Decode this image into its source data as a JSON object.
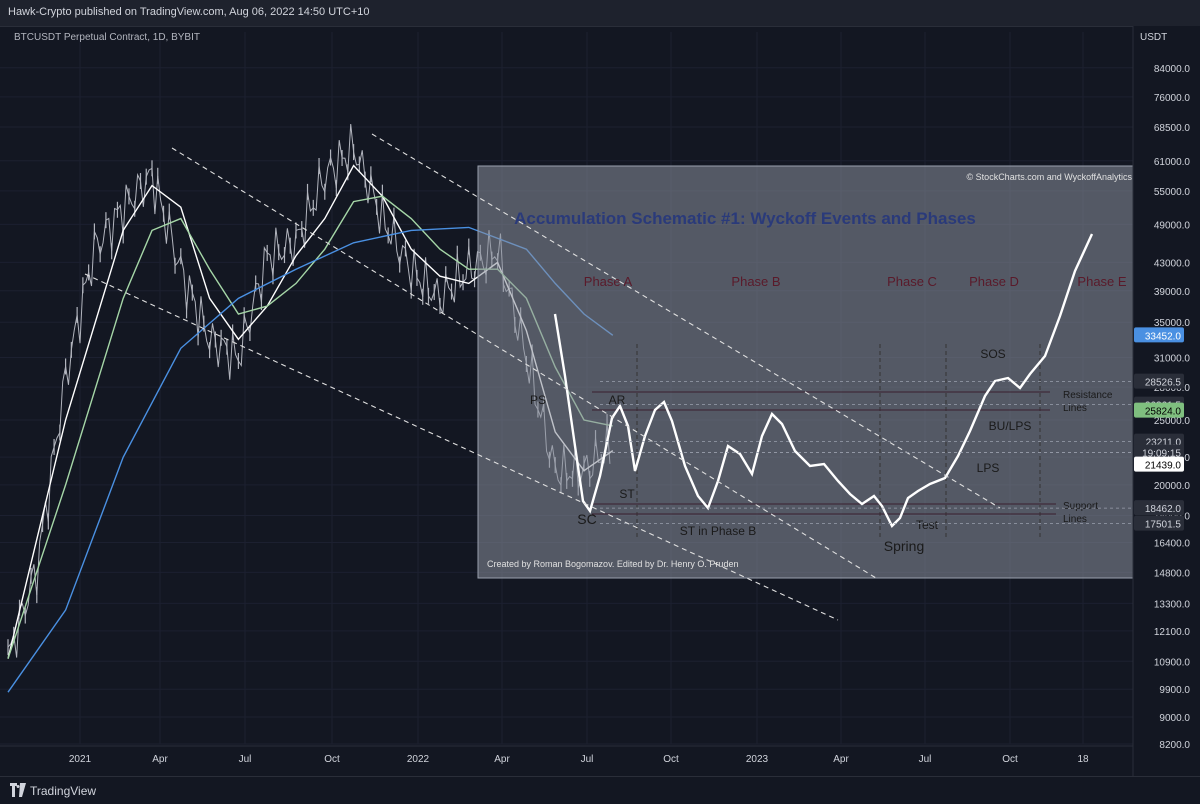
{
  "header": {
    "publisher": "Hawk-Crypto published on TradingView.com, Aug 06, 2022 14:50 UTC+10",
    "symbol": "BTCUSDT Perpetual Contract, 1D, BYBIT"
  },
  "footer": {
    "brand": "TradingView"
  },
  "colors": {
    "background": "#131722",
    "candles": "#b2b5be",
    "ma_white": "#ffffff",
    "ma_green": "#a5d6a7",
    "ma_blue": "#4a90e2",
    "overlay": "#8a8f9c",
    "overlay_title": "#2a3a7a",
    "phase_label": "#5a1a2a",
    "tag_blue": "#4a90e2",
    "tag_green": "#7fbf7f",
    "tag_white": "#ffffff"
  },
  "chart_data": {
    "type": "line",
    "title": "",
    "axis_unit": "USDT",
    "scale": "log",
    "ylim": [
      8200,
      95000
    ],
    "y_ticks": [
      84000,
      76000,
      68500,
      61000,
      55000,
      49000,
      43000,
      39000,
      35000,
      31000,
      28000,
      25000,
      22000,
      20000,
      18000,
      16400,
      14800,
      13300,
      12100,
      10900,
      9900,
      9000,
      8200
    ],
    "x_tick_labels": [
      "2021",
      "Apr",
      "Jul",
      "Oct",
      "2022",
      "Apr",
      "Jul",
      "Oct",
      "2023",
      "Apr",
      "Jul",
      "Oct",
      "18"
    ],
    "price_tags": [
      {
        "label": "33452.0",
        "value": 33452,
        "style": "blue"
      },
      {
        "label": "28526.5",
        "value": 28526.5,
        "style": "dark"
      },
      {
        "label": "26361.5",
        "value": 26361.5,
        "style": "dark"
      },
      {
        "label": "25824.0",
        "value": 25824,
        "style": "green"
      },
      {
        "label": "23211.0",
        "value": 23211,
        "style": "dark"
      },
      {
        "label": "19:09:15",
        "value": 22350,
        "style": "dark"
      },
      {
        "label": "21439.0",
        "value": 21439,
        "style": "white"
      },
      {
        "label": "18462.0",
        "value": 18462,
        "style": "dark"
      },
      {
        "label": "17501.5",
        "value": 17501.5,
        "style": "dark"
      }
    ],
    "wyckoff_overlay": {
      "title": "Accumulation Schematic #1: Wyckoff Events and Phases",
      "credit_top": "© StockCharts.com and WyckoffAnalytics",
      "credit_bottom": "Created by Roman Bogomazov. Edited by Dr. Henry O. Pruden",
      "phases": [
        "Phase A",
        "Phase B",
        "Phase C",
        "Phase D",
        "Phase E"
      ],
      "events": [
        "PS",
        "AR",
        "SC",
        "ST",
        "ST in Phase B",
        "Spring",
        "Test",
        "LPS",
        "BU/LPS",
        "SOS"
      ],
      "line_labels": [
        "Resistance\nLines",
        "Support\nLines"
      ]
    },
    "series": [
      {
        "name": "",
        "kind": "daily-close",
        "x": [
          "2020-11",
          "2020-12",
          "2021-01",
          "2021-02",
          "2021-03",
          "2021-04",
          "2021-05",
          "2021-06",
          "2021-07",
          "2021-08",
          "2021-09",
          "2021-10",
          "2021-11",
          "2021-12",
          "2022-01",
          "2022-02",
          "2022-03",
          "2022-04",
          "2022-05",
          "2022-06",
          "2022-07",
          "2022-08"
        ],
        "values": [
          11000,
          15000,
          29000,
          45000,
          52000,
          58000,
          42000,
          33000,
          31000,
          44000,
          46000,
          58000,
          64000,
          50000,
          42000,
          38000,
          42000,
          45000,
          31000,
          21000,
          21000,
          23000
        ]
      },
      {
        "name": "",
        "kind": "ma-white",
        "x": [
          "2020-11",
          "2021-01",
          "2021-03",
          "2021-04",
          "2021-05",
          "2021-06",
          "2021-07",
          "2021-08",
          "2021-09",
          "2021-10",
          "2021-11",
          "2021-12",
          "2022-01",
          "2022-02",
          "2022-03",
          "2022-04",
          "2022-05",
          "2022-06",
          "2022-07",
          "2022-08"
        ],
        "values": [
          11000,
          25000,
          48000,
          56000,
          52000,
          38000,
          33000,
          37000,
          44000,
          50000,
          60000,
          54000,
          45000,
          41000,
          40000,
          43000,
          34000,
          24000,
          21000,
          22500
        ]
      },
      {
        "name": "",
        "kind": "ma-green",
        "x": [
          "2020-11",
          "2021-01",
          "2021-03",
          "2021-04",
          "2021-05",
          "2021-06",
          "2021-07",
          "2021-08",
          "2021-09",
          "2021-10",
          "2021-11",
          "2021-12",
          "2022-01",
          "2022-02",
          "2022-03",
          "2022-04",
          "2022-05",
          "2022-06",
          "2022-07",
          "2022-08"
        ],
        "values": [
          11000,
          20000,
          38000,
          48000,
          50000,
          42000,
          36000,
          37000,
          40000,
          45000,
          53000,
          54000,
          50000,
          45000,
          42000,
          42000,
          38000,
          30000,
          25000,
          24500
        ]
      },
      {
        "name": "",
        "kind": "ma-blue",
        "x": [
          "2020-11",
          "2021-01",
          "2021-03",
          "2021-05",
          "2021-07",
          "2021-09",
          "2021-11",
          "2022-01",
          "2022-03",
          "2022-05",
          "2022-06",
          "2022-07",
          "2022-08"
        ],
        "values": [
          9800,
          13000,
          22000,
          32000,
          38000,
          42000,
          46000,
          48000,
          48500,
          45000,
          40000,
          36000,
          33452
        ]
      }
    ]
  }
}
